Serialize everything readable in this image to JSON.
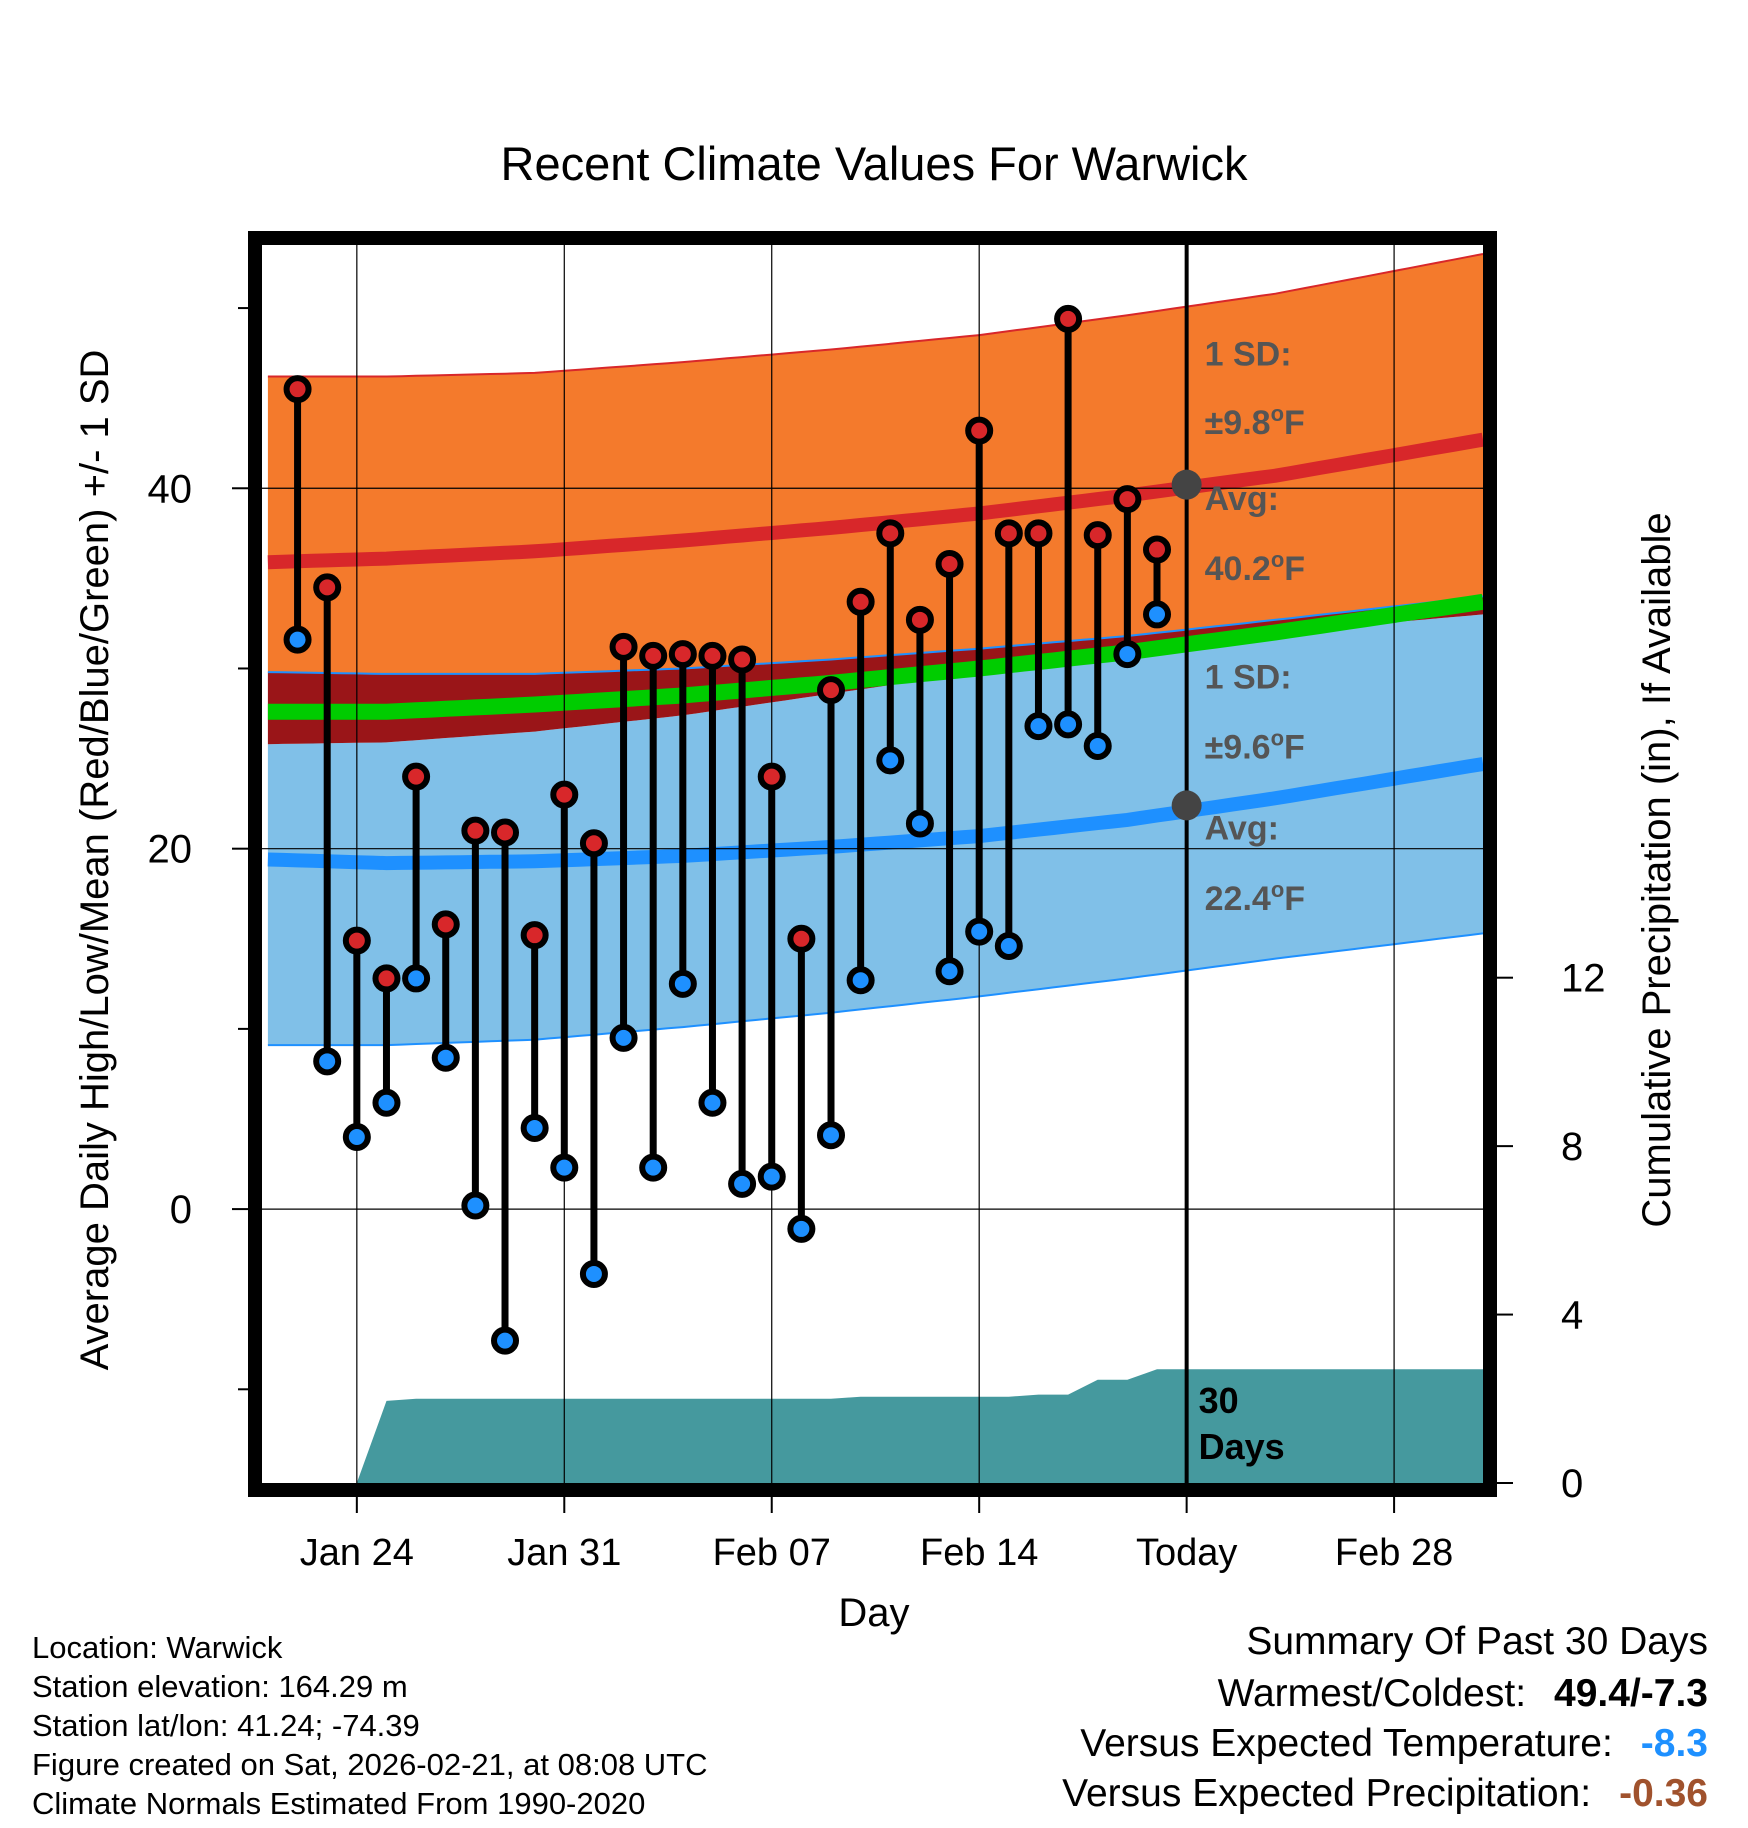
{
  "chart_data": {
    "type": "line",
    "title": "Recent Climate Values For Warwick",
    "xlabel": "Day",
    "ylabel": "Average Daily High/Low/Mean (Red/Blue/Green) +/- 1 SD",
    "y2label": "Cumulative Precipitation (in), If Available",
    "x_tick_labels": [
      "Jan 24",
      "Jan 31",
      "Feb 07",
      "Feb 14",
      "Today",
      "Feb 28"
    ],
    "x_tick_days": [
      24,
      31,
      38,
      45,
      52,
      59
    ],
    "xlim": [
      20.8,
      62
    ],
    "ylim": [
      -15.2,
      53.5
    ],
    "y_ticks": [
      0,
      20,
      40
    ],
    "y_minor_ticks": [
      -10,
      10,
      30,
      50
    ],
    "y2lim": [
      0,
      29.4
    ],
    "y2_ticks": [
      0,
      4,
      8,
      12
    ],
    "today_day": 52,
    "day_index_note": "x values are days counted from Jan 1 (Feb 1 = 32)",
    "high_avg": {
      "x": [
        21,
        25,
        30,
        35,
        40,
        45,
        50,
        55,
        62
      ],
      "values": [
        35.9,
        36.1,
        36.5,
        37.1,
        37.8,
        38.6,
        39.6,
        40.7,
        42.7
      ]
    },
    "high_upper": {
      "x": [
        21,
        25,
        30,
        35,
        40,
        45,
        50,
        55,
        62
      ],
      "values": [
        46.2,
        46.2,
        46.4,
        47.0,
        47.7,
        48.5,
        49.6,
        50.8,
        53.0
      ]
    },
    "low_avg": {
      "x": [
        21,
        25,
        30,
        35,
        40,
        45,
        50,
        55,
        62
      ],
      "values": [
        19.4,
        19.2,
        19.3,
        19.6,
        20.1,
        20.7,
        21.6,
        22.8,
        24.7
      ]
    },
    "low_lower": {
      "x": [
        21,
        25,
        30,
        35,
        40,
        45,
        50,
        55,
        62
      ],
      "values": [
        9.1,
        9.1,
        9.4,
        10.1,
        10.9,
        11.8,
        12.8,
        13.9,
        15.3
      ]
    },
    "high_lower": {
      "x": [
        21,
        25,
        30,
        35,
        40,
        45,
        50,
        55,
        62
      ],
      "values": [
        29.8,
        29.7,
        29.7,
        30.0,
        30.5,
        31.1,
        31.8,
        32.7,
        34.0
      ]
    },
    "low_upper": {
      "x": [
        21,
        25,
        30,
        35,
        40,
        45,
        50,
        55,
        62
      ],
      "values": [
        25.8,
        25.9,
        26.5,
        27.4,
        28.6,
        29.8,
        31.0,
        32.0,
        33.0
      ]
    },
    "mean_avg": {
      "x": [
        21,
        25,
        30,
        35,
        40,
        45,
        50,
        55,
        62
      ],
      "values": [
        27.6,
        27.6,
        28.0,
        28.5,
        29.2,
        30.0,
        30.9,
        32.0,
        33.7
      ]
    },
    "daily": {
      "days": [
        22,
        23,
        24,
        25,
        26,
        27,
        28,
        29,
        30,
        31,
        32,
        33,
        34,
        35,
        36,
        37,
        38,
        39,
        40,
        41,
        42,
        43,
        44,
        45,
        46,
        47,
        48,
        49,
        50,
        51
      ],
      "highs": [
        45.5,
        34.5,
        14.9,
        12.8,
        24.0,
        15.8,
        21.0,
        20.9,
        15.2,
        23.0,
        20.3,
        31.2,
        30.7,
        30.8,
        30.7,
        30.5,
        24.0,
        15.0,
        28.8,
        33.7,
        37.5,
        32.7,
        35.8,
        43.2,
        37.5,
        37.5,
        49.4,
        37.4,
        39.4,
        36.6
      ],
      "lows": [
        31.6,
        8.2,
        4.0,
        5.9,
        12.8,
        8.4,
        0.2,
        -7.3,
        4.5,
        2.3,
        -3.6,
        9.5,
        2.3,
        12.5,
        5.9,
        1.4,
        1.8,
        -1.1,
        4.1,
        12.7,
        24.9,
        21.4,
        13.2,
        15.4,
        14.6,
        26.8,
        26.9,
        25.7,
        30.8,
        33.0
      ]
    },
    "precip": {
      "x": [
        24,
        25,
        26,
        30,
        35,
        40,
        41,
        45,
        46,
        47,
        48,
        49,
        50,
        51,
        62
      ],
      "values": [
        0,
        1.95,
        2.0,
        2.0,
        2.0,
        2.0,
        2.05,
        2.05,
        2.05,
        2.1,
        2.1,
        2.45,
        2.45,
        2.7,
        2.7
      ]
    },
    "annotations": {
      "high_sd": "1 SD:",
      "high_sd_value": "±9.8",
      "high_avg_label": "Avg:",
      "high_avg_value": "40.2",
      "low_sd": "1 SD:",
      "low_sd_value": "±9.6",
      "low_avg_label": "Avg:",
      "low_avg_value": "22.4",
      "unit_sup": "o",
      "unit": "F",
      "days_count": "30",
      "days_label": "Days"
    },
    "marker_avg_high": 40.2,
    "marker_avg_low": 22.4
  },
  "colors": {
    "orange_band": "#f47a2c",
    "dark_red_overlap": "#9a1518",
    "red_line": "#d8272a",
    "green_line": "#00cc00",
    "blue_band": "#80c0e8",
    "blue_line": "#1e90ff",
    "precip_fill": "#45999e",
    "high_marker": "#d8272a",
    "low_marker": "#1e90ff",
    "annotation_text": "#555555",
    "temp_anomaly": "#1e90ff",
    "precip_anomaly": "#a0522d"
  },
  "info": {
    "location": "Location: Warwick",
    "elevation": "Station elevation: 164.29 m",
    "latlon": "Station lat/lon: 41.24; -74.39",
    "created": "Figure created on Sat, 2026-02-21, at 08:08 UTC",
    "normals": "Climate Normals Estimated From 1990-2020"
  },
  "summary": {
    "heading": "Summary Of Past 30 Days",
    "warm_cold_label": "Warmest/Coldest:",
    "warm_cold_value": "49.4/-7.3",
    "temp_label": "Versus Expected Temperature:",
    "temp_value": "-8.3",
    "precip_label": "Versus Expected Precipitation:",
    "precip_value": "-0.36"
  }
}
